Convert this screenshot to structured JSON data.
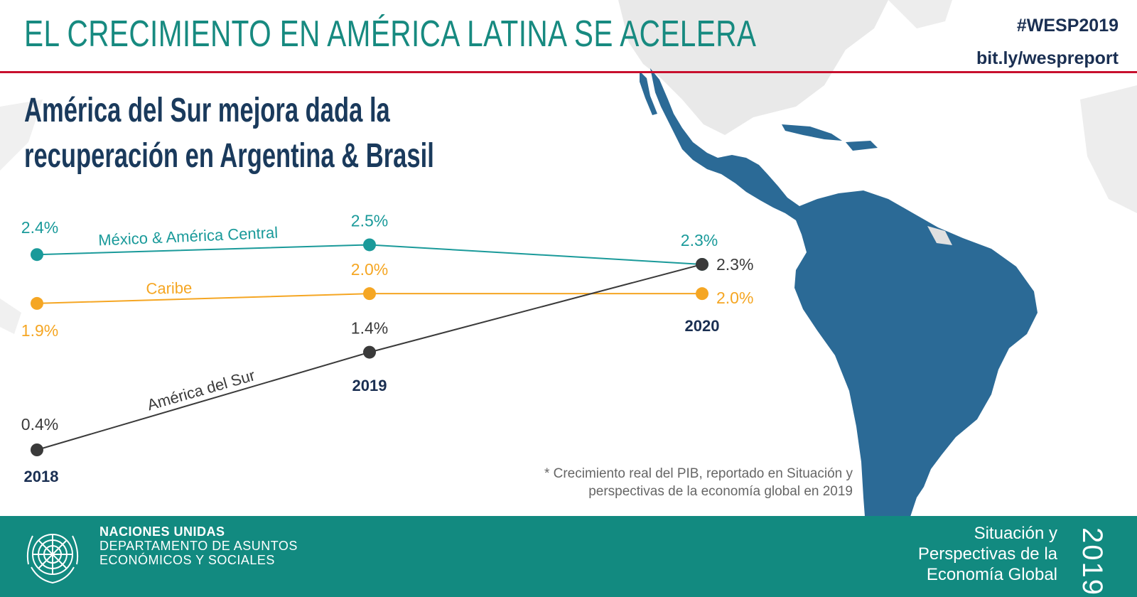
{
  "header": {
    "title": "EL CRECIMIENTO EN AMÉRICA LATINA SE ACELERA",
    "hashtag": "#WESP2019",
    "link": "bit.ly/wespreport"
  },
  "subtitle": {
    "line1": "América del Sur mejora dada la",
    "line2": "recuperación en Argentina & Brasil"
  },
  "footnote": {
    "line1": "* Crecimiento real del PIB, reportado en Situación y",
    "line2": "perspectivas de la economía global en 2019"
  },
  "footer": {
    "org_line1": "NACIONES UNIDAS",
    "org_line2": "DEPARTAMENTO DE ASUNTOS",
    "org_line3": "ECONÓMICOS Y SOCIALES",
    "report_line1": "Situación y",
    "report_line2": "Perspectivas de la",
    "report_line3": "Economía Global",
    "report_year": "2019"
  },
  "colors": {
    "teal": "#1a9a9a",
    "orange": "#f5a623",
    "dark": "#3a3a3a",
    "navy": "#1a2f52",
    "accent_red": "#c8102e",
    "footer_bg": "#128a80",
    "map_blue": "#2b6a96"
  },
  "chart_data": {
    "type": "line",
    "categories": [
      "2018",
      "2019",
      "2020"
    ],
    "series": [
      {
        "name": "México & América Central",
        "values": [
          2.4,
          2.5,
          2.3
        ],
        "labels": [
          "2.4%",
          "2.5%",
          "2.3%"
        ],
        "color": "#1a9a9a"
      },
      {
        "name": "Caribe",
        "values": [
          1.9,
          2.0,
          2.0
        ],
        "labels": [
          "1.9%",
          "2.0%",
          "2.0%"
        ],
        "color": "#f5a623"
      },
      {
        "name": "América del Sur",
        "values": [
          0.4,
          1.4,
          2.3
        ],
        "labels": [
          "0.4%",
          "1.4%",
          "2.3%"
        ],
        "color": "#3a3a3a"
      }
    ],
    "title": "",
    "xlabel": "",
    "ylabel": "",
    "grid": false,
    "legend": "inline labels"
  }
}
